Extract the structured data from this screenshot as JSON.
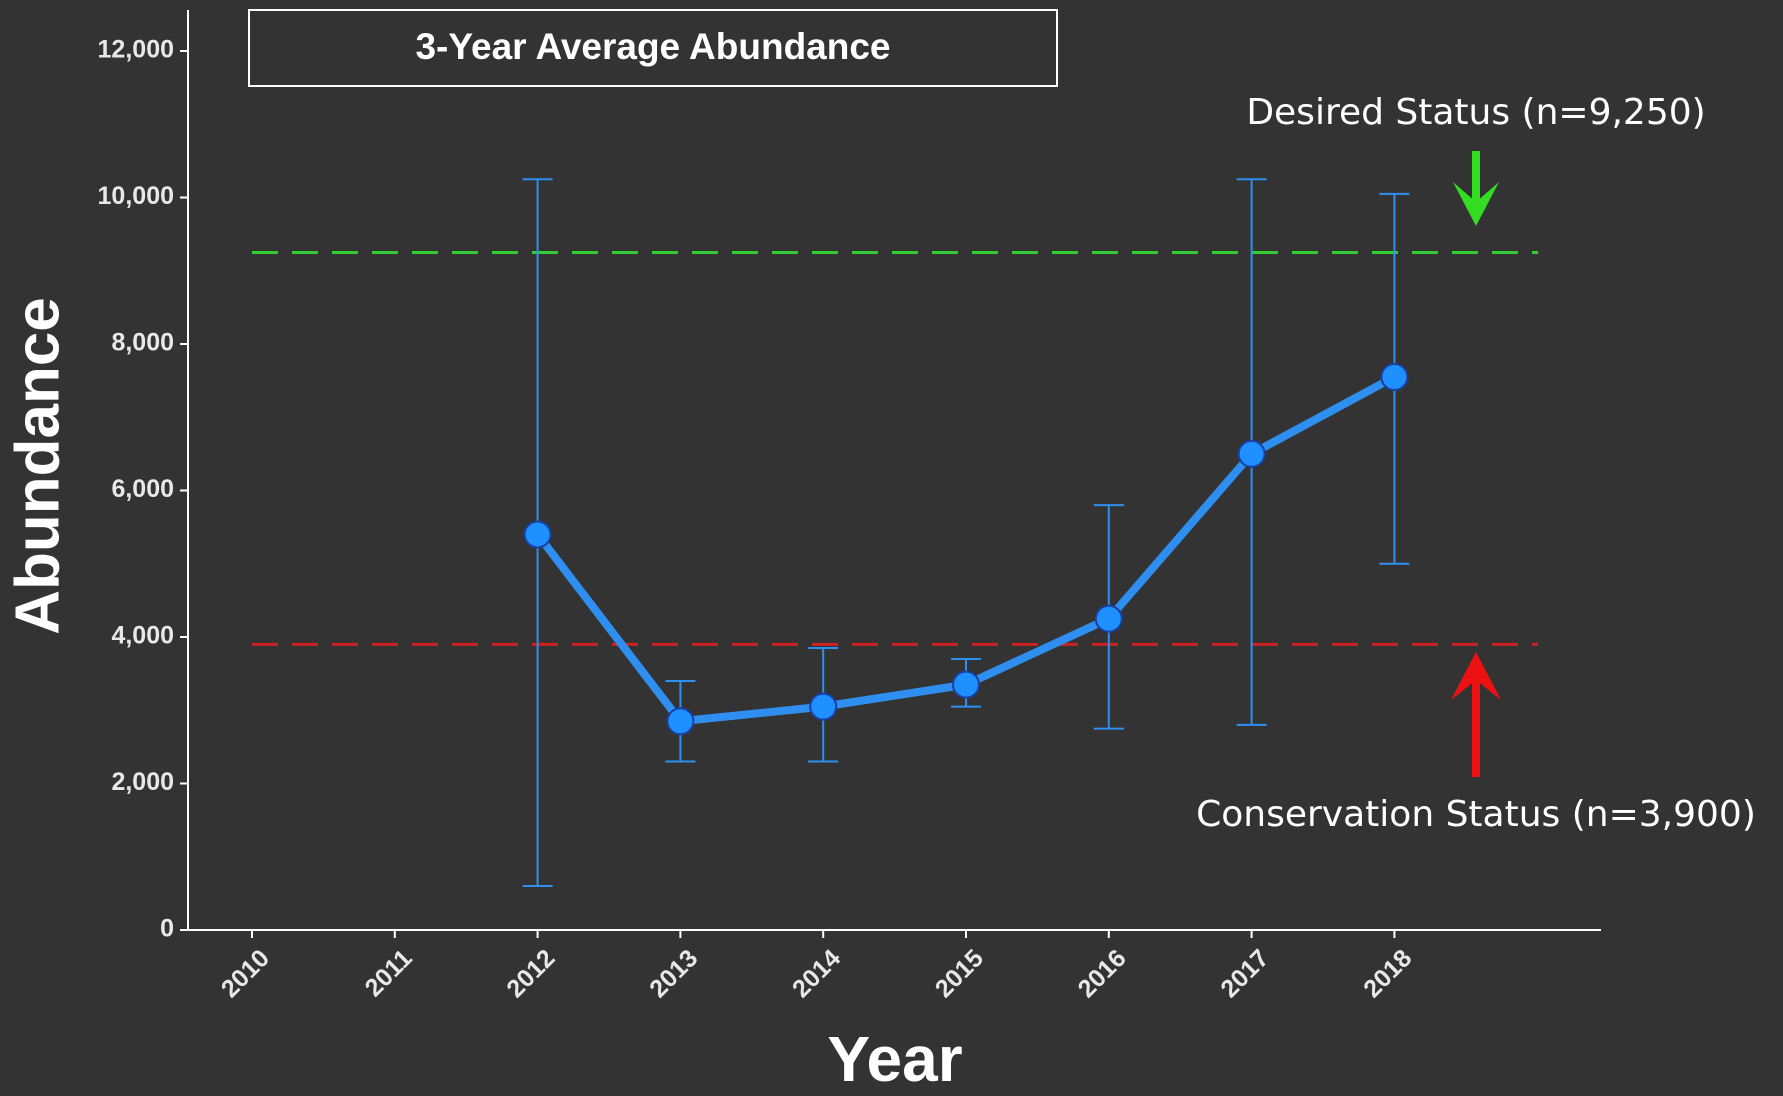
{
  "chart_data": {
    "type": "line",
    "title": "3-Year Average Abundance",
    "x_label": "Year",
    "y_label": "Abundance",
    "categories": [
      "2010",
      "2011",
      "2012",
      "2013",
      "2014",
      "2015",
      "2016",
      "2017",
      "2018"
    ],
    "series": [
      {
        "name": "3-Year Average Abundance",
        "color": "#2f8ff0",
        "values": [
          null,
          null,
          5400,
          2850,
          3050,
          3350,
          4250,
          6500,
          7550
        ],
        "lower": [
          null,
          null,
          600,
          2300,
          2300,
          3050,
          2750,
          2800,
          5000
        ],
        "upper": [
          null,
          null,
          10250,
          3400,
          3850,
          3700,
          5800,
          10250,
          10050
        ]
      }
    ],
    "reference_lines": [
      {
        "label": "Desired Status (n=9,250)",
        "value": 9250,
        "color": "#33cc33"
      },
      {
        "label": "Conservation Status (n=3,900)",
        "value": 3900,
        "color": "#cc2222"
      }
    ],
    "ylim": [
      0,
      12000
    ],
    "yticks": [
      {
        "value": 0,
        "label": "0"
      },
      {
        "value": 2000,
        "label": "2,000"
      },
      {
        "value": 4000,
        "label": "4,000"
      },
      {
        "value": 6000,
        "label": "6,000"
      },
      {
        "value": 8000,
        "label": "8,000"
      },
      {
        "value": 10000,
        "label": "10,000"
      },
      {
        "value": 12000,
        "label": "12,000"
      }
    ]
  }
}
